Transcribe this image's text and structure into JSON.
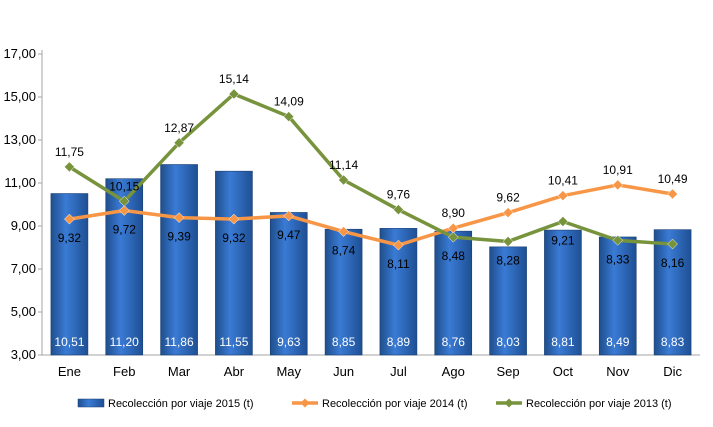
{
  "chart_data": {
    "type": "bar",
    "categories": [
      "Ene",
      "Feb",
      "Mar",
      "Abr",
      "May",
      "Jun",
      "Jul",
      "Ago",
      "Sep",
      "Oct",
      "Nov",
      "Dic"
    ],
    "series": [
      {
        "name": "Recolección por viaje 2015 (t)",
        "type": "bar",
        "color": "#2E6CC4",
        "values": [
          10.51,
          11.2,
          11.86,
          11.55,
          9.63,
          8.85,
          8.89,
          8.76,
          8.03,
          8.81,
          8.49,
          8.83
        ],
        "labels": [
          "10,51",
          "11,20",
          "11,86",
          "11,55",
          "9,63",
          "8,85",
          "8,89",
          "8,76",
          "8,03",
          "8,81",
          "8,49",
          "8,83"
        ]
      },
      {
        "name": "Recolección por viaje 2014 (t)",
        "type": "line",
        "color": "#F79646",
        "values": [
          9.32,
          9.72,
          9.39,
          9.32,
          9.47,
          8.74,
          8.11,
          8.9,
          9.62,
          10.41,
          10.91,
          10.49
        ],
        "labels": [
          "9,32",
          "9,72",
          "9,39",
          "9,32",
          "9,47",
          "8,74",
          "8,11",
          "8,90",
          "9,62",
          "10,41",
          "10,91",
          "10,49"
        ]
      },
      {
        "name": "Recolección por viaje 2013 (t)",
        "type": "line",
        "color": "#77933C",
        "values": [
          11.75,
          10.15,
          12.87,
          15.14,
          14.09,
          11.14,
          9.76,
          8.48,
          8.28,
          9.21,
          8.33,
          8.16
        ],
        "labels": [
          "11,75",
          "10,15",
          "12,87",
          "15,14",
          "14,09",
          "11,14",
          "9,76",
          "8,48",
          "8,28",
          "9,21",
          "8,33",
          "8,16"
        ]
      }
    ],
    "y_ticks": [
      "3,00",
      "5,00",
      "7,00",
      "9,00",
      "11,00",
      "13,00",
      "15,00",
      "17,00"
    ],
    "ylim": [
      3,
      17
    ],
    "grid": false,
    "legend_position": "bottom"
  }
}
